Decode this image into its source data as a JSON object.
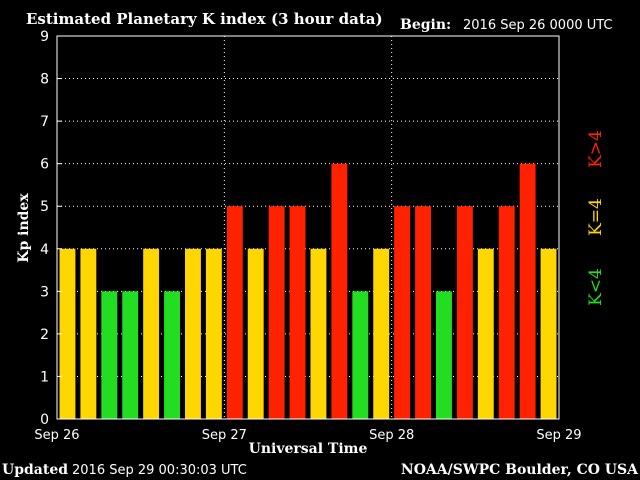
{
  "header": {
    "title": "Estimated Planetary K index (3 hour data)",
    "begin_label": "Begin:",
    "begin_value": "2016 Sep 26 0000 UTC"
  },
  "footer": {
    "updated_label": "Updated",
    "updated_value": "2016 Sep 29 00:30:03 UTC",
    "source": "NOAA/SWPC Boulder, CO USA"
  },
  "legend": {
    "green": {
      "text": "K<4",
      "color": "#22dd22"
    },
    "yellow": {
      "text": "K=4",
      "color": "#ffd700"
    },
    "red": {
      "text": "K>4",
      "color": "#ff2200"
    }
  },
  "chart_data": {
    "type": "bar",
    "title": "Estimated Planetary K index (3 hour data)",
    "xlabel": "Universal Time",
    "ylabel": "Kp index",
    "ylim": [
      0,
      9
    ],
    "yticks": [
      0,
      1,
      2,
      3,
      4,
      5,
      6,
      7,
      8,
      9
    ],
    "xtick_labels": [
      "Sep 26",
      "Sep 27",
      "Sep 28",
      "Sep 29"
    ],
    "grid": true,
    "values": [
      4,
      4,
      3,
      3,
      4,
      3,
      4,
      4,
      5,
      4,
      5,
      5,
      4,
      6,
      3,
      4,
      5,
      5,
      3,
      5,
      4,
      5,
      6,
      4
    ],
    "colors": {
      "below": "#22dd22",
      "equal": "#ffd700",
      "above": "#ff2200"
    }
  }
}
